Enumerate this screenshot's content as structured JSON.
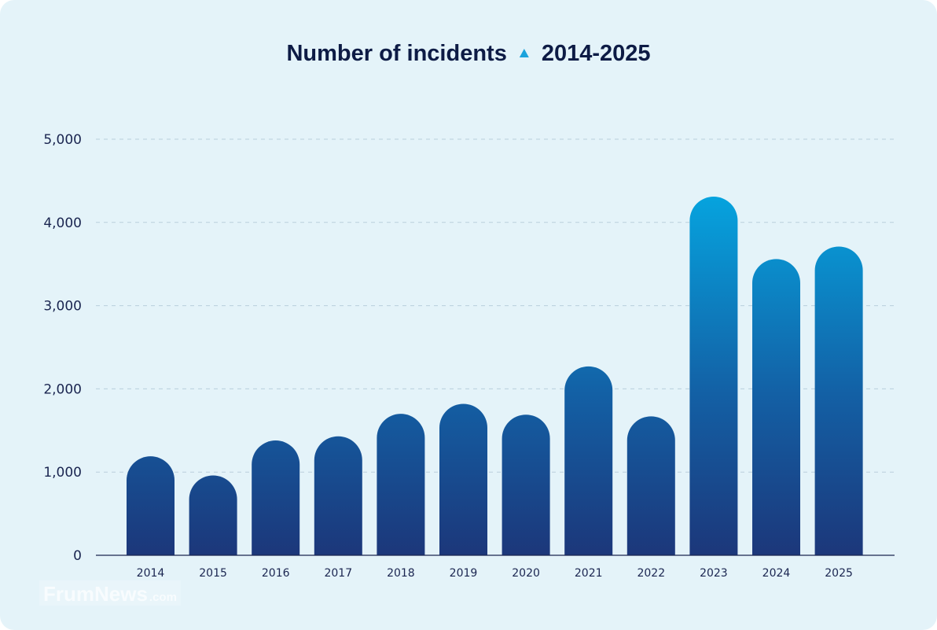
{
  "chart_data": {
    "type": "bar",
    "title": "Number of incidents",
    "title_range": "2014-2025",
    "title_separator_icon": "triangle-up-icon",
    "categories": [
      "2014",
      "2015",
      "2016",
      "2017",
      "2018",
      "2019",
      "2020",
      "2021",
      "2022",
      "2023",
      "2024",
      "2025"
    ],
    "values": [
      1190,
      960,
      1380,
      1430,
      1700,
      1820,
      1690,
      2270,
      1670,
      4310,
      3560,
      3710
    ],
    "xlabel": "",
    "ylabel": "",
    "ylim": [
      0,
      5000
    ],
    "yticks": [
      0,
      1000,
      2000,
      3000,
      4000,
      5000
    ],
    "ytick_labels": [
      "0",
      "1,000",
      "2,000",
      "3,000",
      "4,000",
      "5,000"
    ],
    "grid": true,
    "colors": {
      "bar_bottom": "#1c377a",
      "bar_top": "#06a3de",
      "accent": "#1ba3dc",
      "title": "#0d1b45",
      "background": "#e4f3f9"
    }
  },
  "watermark": {
    "name": "FrumNews",
    "suffix": ".com"
  }
}
